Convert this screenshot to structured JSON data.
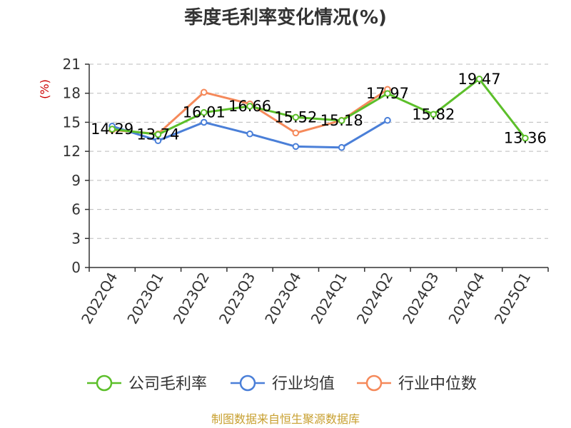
{
  "chart_data": {
    "type": "line",
    "title": "季度毛利率变化情况(%)",
    "ylabel": "(%)",
    "ylim": [
      0,
      21
    ],
    "yticks": [
      0,
      3,
      6,
      9,
      12,
      15,
      18,
      21
    ],
    "grid": true,
    "legend_position": "bottom",
    "categories": [
      "2022Q4",
      "2023Q1",
      "2023Q2",
      "2023Q3",
      "2023Q4",
      "2024Q1",
      "2024Q2",
      "2024Q3",
      "2024Q4",
      "2025Q1"
    ],
    "series": [
      {
        "name": "公司毛利率",
        "color": "#5cbf2a",
        "values": [
          14.29,
          13.74,
          16.01,
          16.66,
          15.52,
          15.18,
          17.97,
          15.82,
          19.47,
          13.36
        ],
        "labels": [
          "14.29",
          "13.74",
          "16.01",
          "16.66",
          "15.52",
          "15.18",
          "17.97",
          "15.82",
          "19.47",
          "13.36"
        ]
      },
      {
        "name": "行业均值",
        "color": "#4a7fd8",
        "values": [
          14.6,
          13.1,
          15.0,
          13.8,
          12.5,
          12.4,
          15.2,
          null,
          null,
          null
        ]
      },
      {
        "name": "行业中位数",
        "color": "#f5895a",
        "values": [
          14.2,
          13.8,
          18.1,
          16.9,
          13.9,
          15.2,
          18.4,
          null,
          null,
          null
        ]
      }
    ]
  },
  "source": "制图数据来自恒生聚源数据库"
}
